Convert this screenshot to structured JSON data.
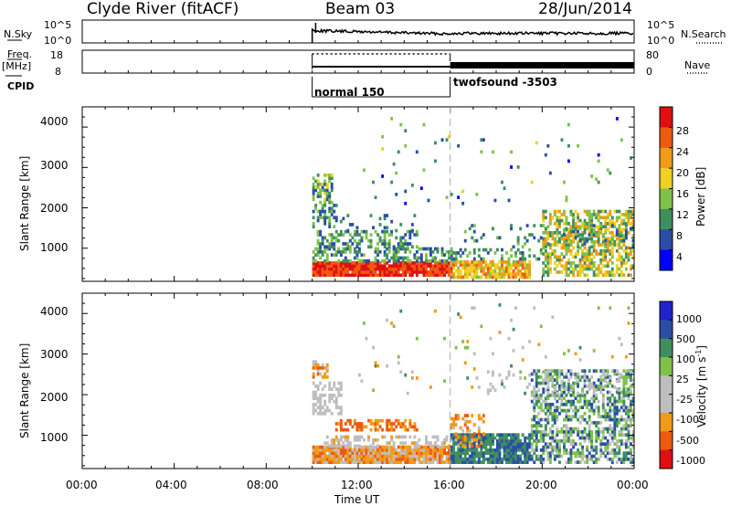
{
  "header": {
    "station": "Clyde River (fitACF)",
    "beam": "Beam 03",
    "date": "28/Jun/2014"
  },
  "summary": {
    "nsky_label": "N.Sky",
    "nsky_ticks": [
      "10^5",
      "10^0"
    ],
    "nsearch_label": "N.Search",
    "nsearch_ticks": [
      "10^5",
      "10^0"
    ],
    "freq_label": "Freq.",
    "freq_unit": "[MHz]",
    "freq_ticks": [
      "18",
      "8"
    ],
    "nave_label": "Nave",
    "nave_ticks": [
      "80",
      "0"
    ],
    "cpid_label": "CPID",
    "modes": [
      "normal 150",
      "twofsound -3503"
    ]
  },
  "colors": {
    "power": [
      "#0000ff",
      "#2a4ea8",
      "#3f8f5e",
      "#7fc24a",
      "#f0d020",
      "#f39a18",
      "#ee5a10",
      "#e01010"
    ],
    "velocity": [
      "#e01010",
      "#ee5a10",
      "#f39a18",
      "#bebebe",
      "#bebebe",
      "#7fc24a",
      "#3f8f5e",
      "#2a4ea8",
      "#2222cc"
    ],
    "ground_scatter": "#bebebe"
  },
  "chart_data": [
    {
      "type": "heatmap",
      "title": "Power",
      "ylabel": "Slant Range [km]",
      "yticks": [
        "4000",
        "3000",
        "2000",
        "1000"
      ],
      "ylim": [
        180,
        4500
      ],
      "xlim": [
        "00:00",
        "24:00"
      ],
      "colorbar_label": "Power [dB]",
      "colorbar_ticks": [
        "28",
        "24",
        "20",
        "16",
        "12",
        "8",
        "4"
      ],
      "colorbar_range": [
        0,
        32
      ],
      "data_start": "10:00",
      "mode_change": "16:00"
    },
    {
      "type": "heatmap",
      "title": "Velocity",
      "ylabel": "Slant Range [km]",
      "yticks": [
        "4000",
        "3000",
        "2000",
        "1000"
      ],
      "ylim": [
        180,
        4500
      ],
      "xlabel": "Time UT",
      "xticks": [
        "00:00",
        "04:00",
        "08:00",
        "12:00",
        "16:00",
        "20:00",
        "00:00"
      ],
      "colorbar_label": "Velocity [m s",
      "colorbar_label_sup": "-1",
      "colorbar_label_end": "]",
      "colorbar_ticks": [
        "1000",
        "500",
        "100",
        "25",
        "-25",
        "-100",
        "-500",
        "-1000"
      ],
      "data_start": "10:00",
      "mode_change": "16:00"
    }
  ]
}
